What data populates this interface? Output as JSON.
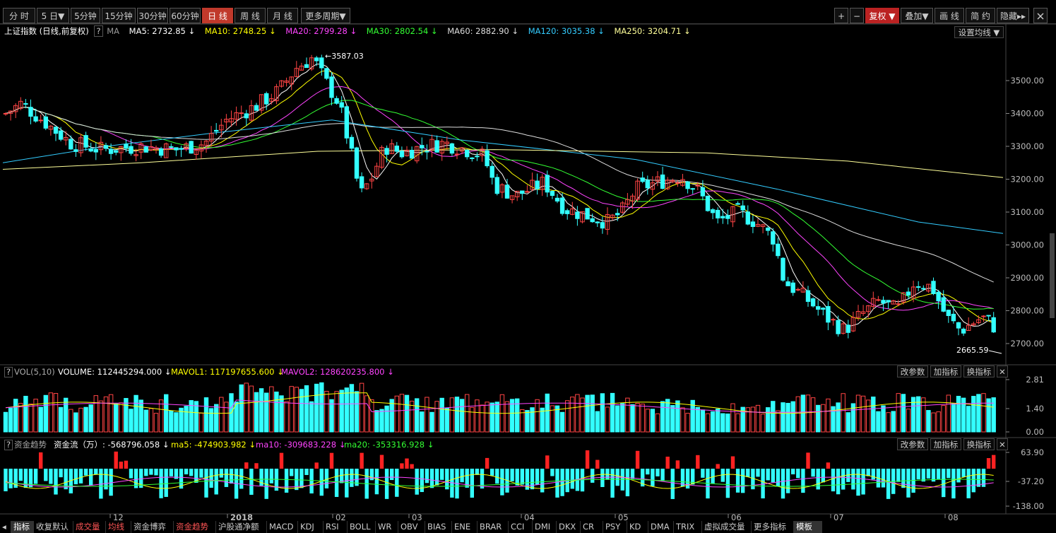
{
  "toolbar": {
    "periods": [
      "分 时",
      "5 日▼",
      "5分钟",
      "15分钟",
      "30分钟",
      "60分钟",
      "日 线",
      "周 线",
      "月 线",
      "更多周期▼"
    ],
    "active_period": "日 线",
    "plus": "+",
    "minus": "−",
    "fuquan": "复权 ▼",
    "diejia": "叠加▼",
    "huaxian": "画 线",
    "jianyue": "简 约",
    "yincang": "隐藏▸▸"
  },
  "ma_header": {
    "title": "上证指数 (日线,前复权)",
    "q": "?",
    "ma_label": "MA",
    "items": [
      {
        "label": "MA5: 2732.85 ↓",
        "color": "#ffffff"
      },
      {
        "label": "MA10: 2748.25 ↓",
        "color": "#ffff00"
      },
      {
        "label": "MA20: 2799.28 ↓",
        "color": "#ff44ff"
      },
      {
        "label": "MA30: 2802.54 ↓",
        "color": "#33ff33"
      },
      {
        "label": "MA60: 2882.90 ↓",
        "color": "#dddddd"
      },
      {
        "label": "MA120: 3035.38 ↓",
        "color": "#33ccff"
      },
      {
        "label": "MA250: 3204.71 ↓",
        "color": "#ffff99"
      }
    ],
    "settings": "设置均线 ▼"
  },
  "main_chart": {
    "yticks": [
      "3500.00",
      "3400.00",
      "3300.00",
      "3200.00",
      "3100.00",
      "3000.00",
      "2900.00",
      "2800.00",
      "2700.00"
    ],
    "high_label": "3587.03",
    "low_label": "2665.59"
  },
  "vol_panel": {
    "q": "?",
    "name": "VOL(5,10)",
    "volume": "VOLUME: 112445294.000 ↓",
    "mavol1": "MAVOL1: 117197655.600 ↓",
    "mavol2": "MAVOL2: 128620235.800 ↓",
    "buttons": [
      "改参数",
      "加指标",
      "换指标",
      "✕"
    ],
    "yticks": [
      "2.81",
      "1.40",
      "0.00"
    ]
  },
  "flow_panel": {
    "q": "?",
    "name": "资金趋势",
    "flow": "资金流（万）: -568796.058 ↓",
    "ma5": "ma5: -474903.982 ↓",
    "ma10": "ma10: -309683.228 ↓",
    "ma20": "ma20: -353316.928 ↓",
    "buttons": [
      "改参数",
      "加指标",
      "换指标",
      "✕"
    ],
    "yticks": [
      "63.90",
      "-37.20",
      "-138.00"
    ]
  },
  "xaxis": {
    "labels": [
      "12",
      "2018",
      "02",
      "03",
      "04",
      "05",
      "06",
      "07",
      "08"
    ]
  },
  "tabs": [
    "指标",
    "收复默认",
    "成交量",
    "均线",
    "资金博弈",
    "资金趋势",
    "沪股通净额",
    "MACD",
    "KDJ",
    "RSI",
    "BOLL",
    "WR",
    "OBV",
    "BIAS",
    "ENE",
    "BRAR",
    "CCI",
    "DMI",
    "DKX",
    "CR",
    "PSY",
    "KD",
    "DMA",
    "TRIX",
    "虚拟成交量",
    "更多指标",
    "模板"
  ],
  "colors": {
    "up": "#ff4444",
    "down": "#33ffff",
    "grid": "#2a2a2a",
    "ma5": "#ffffff",
    "ma10": "#ffff00",
    "ma20": "#ff44ff",
    "ma30": "#33ff33",
    "ma60": "#dddddd",
    "ma120": "#33ccff",
    "ma250": "#ffff99"
  }
}
